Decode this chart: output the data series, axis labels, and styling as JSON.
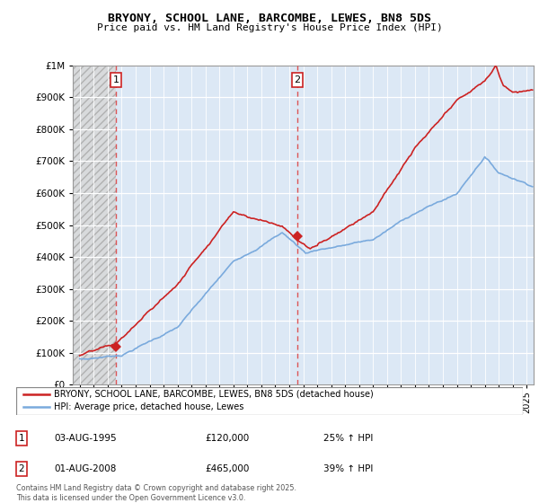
{
  "title": "BRYONY, SCHOOL LANE, BARCOMBE, LEWES, BN8 5DS",
  "subtitle": "Price paid vs. HM Land Registry's House Price Index (HPI)",
  "legend_line1": "BRYONY, SCHOOL LANE, BARCOMBE, LEWES, BN8 5DS (detached house)",
  "legend_line2": "HPI: Average price, detached house, Lewes",
  "annotation1_label": "1",
  "annotation1_date": "03-AUG-1995",
  "annotation1_price": "£120,000",
  "annotation1_hpi": "25% ↑ HPI",
  "annotation2_label": "2",
  "annotation2_date": "01-AUG-2008",
  "annotation2_price": "£465,000",
  "annotation2_hpi": "39% ↑ HPI",
  "footnote": "Contains HM Land Registry data © Crown copyright and database right 2025.\nThis data is licensed under the Open Government Licence v3.0.",
  "sale1_x": 1995.58,
  "sale1_y": 120000,
  "sale2_x": 2008.58,
  "sale2_y": 465000,
  "vline1_x": 1995.58,
  "vline2_x": 2008.58,
  "ylim": [
    0,
    1000000
  ],
  "xlim_start": 1992.5,
  "xlim_end": 2025.5,
  "red_color": "#cc2222",
  "blue_color": "#7aaadd",
  "plot_bg_color": "#dce8f5",
  "hatch_bg_color": "#cccccc",
  "grid_color": "#ffffff",
  "vline_color": "#dd4444"
}
